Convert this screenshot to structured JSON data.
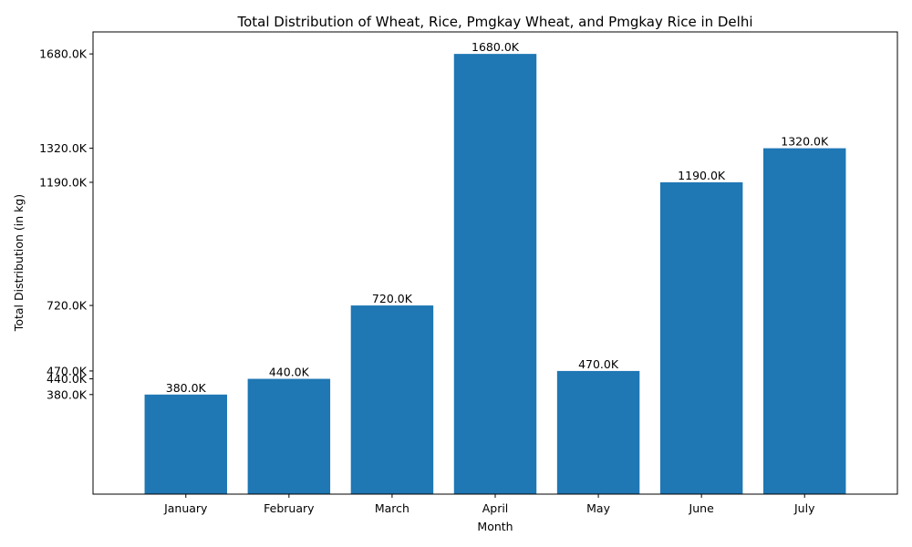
{
  "chart_data": {
    "type": "bar",
    "title": "Total Distribution of Wheat, Rice, Pmgkay Wheat, and Pmgkay Rice in Delhi",
    "xlabel": "Month",
    "ylabel": "Total Distribution (in kg)",
    "categories": [
      "January",
      "February",
      "March",
      "April",
      "May",
      "June",
      "July"
    ],
    "values": [
      380000,
      440000,
      720000,
      1680000,
      470000,
      1190000,
      1320000
    ],
    "data_labels": [
      "380.0K",
      "440.0K",
      "720.0K",
      "1680.0K",
      "470.0K",
      "1190.0K",
      "1320.0K"
    ],
    "y_ticks": [
      380000,
      440000,
      470000,
      720000,
      1190000,
      1320000,
      1680000
    ],
    "y_tick_labels": [
      "380.0K",
      "440.0K",
      "470.0K",
      "720.0K",
      "1190.0K",
      "1320.0K",
      "1680.0K"
    ],
    "ylim": [
      0,
      1764000
    ],
    "bar_color": "#1f77b4",
    "grid": false,
    "legend": "none"
  }
}
